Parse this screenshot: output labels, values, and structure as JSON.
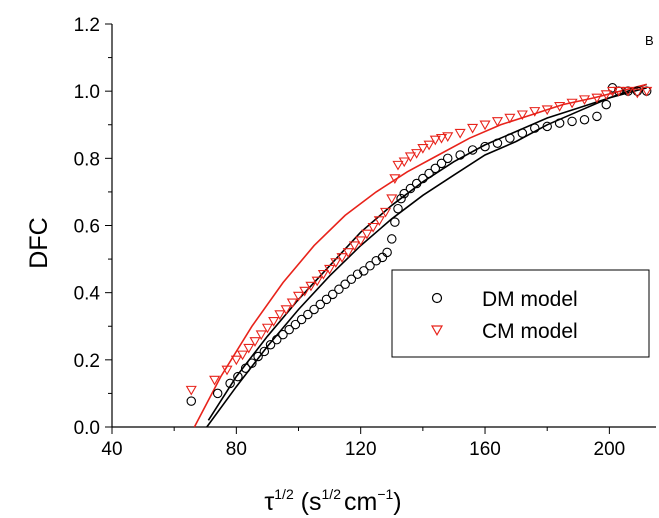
{
  "chart_data": {
    "type": "scatter",
    "panel_label": "B",
    "xlabel": {
      "base": "τ",
      "sup1": "1/2",
      "open": " (s",
      "sup2": "1/2",
      "unit": "cm",
      "sup3": "−1",
      "close": ")"
    },
    "ylabel": "DFC",
    "xlim": [
      40,
      215
    ],
    "ylim": [
      0,
      1.2
    ],
    "x_ticks": [
      "40",
      "80",
      "120",
      "160",
      "200"
    ],
    "y_ticks": [
      "0.0",
      "0.2",
      "0.4",
      "0.6",
      "0.8",
      "1.0",
      "1.2"
    ],
    "grid": false,
    "legend_position": "right-middle",
    "colors": {
      "dm": "#000000",
      "cm": "#e8231b"
    },
    "series": [
      {
        "name": "DM model",
        "marker": "circle",
        "color": "#000000",
        "points": [
          [
            65.5,
            0.077
          ],
          [
            74,
            0.1
          ],
          [
            78,
            0.13
          ],
          [
            80.5,
            0.15
          ],
          [
            83,
            0.175
          ],
          [
            85,
            0.19
          ],
          [
            87,
            0.21
          ],
          [
            89,
            0.225
          ],
          [
            91,
            0.245
          ],
          [
            93,
            0.26
          ],
          [
            95,
            0.275
          ],
          [
            97,
            0.29
          ],
          [
            99,
            0.305
          ],
          [
            101,
            0.32
          ],
          [
            103,
            0.335
          ],
          [
            105,
            0.35
          ],
          [
            107,
            0.365
          ],
          [
            109,
            0.38
          ],
          [
            111,
            0.395
          ],
          [
            113,
            0.41
          ],
          [
            115,
            0.425
          ],
          [
            117,
            0.44
          ],
          [
            119,
            0.455
          ],
          [
            121,
            0.465
          ],
          [
            123,
            0.48
          ],
          [
            125,
            0.495
          ],
          [
            127,
            0.505
          ],
          [
            128.5,
            0.52
          ],
          [
            130,
            0.56
          ],
          [
            131,
            0.61
          ],
          [
            132,
            0.65
          ],
          [
            133,
            0.68
          ],
          [
            134,
            0.695
          ],
          [
            136,
            0.71
          ],
          [
            138,
            0.725
          ],
          [
            140,
            0.74
          ],
          [
            142,
            0.755
          ],
          [
            144,
            0.77
          ],
          [
            146,
            0.785
          ],
          [
            148,
            0.8
          ],
          [
            152,
            0.81
          ],
          [
            156,
            0.825
          ],
          [
            160,
            0.835
          ],
          [
            164,
            0.845
          ],
          [
            168,
            0.86
          ],
          [
            172,
            0.875
          ],
          [
            176,
            0.89
          ],
          [
            180,
            0.895
          ],
          [
            184,
            0.905
          ],
          [
            188,
            0.91
          ],
          [
            192,
            0.915
          ],
          [
            196,
            0.925
          ],
          [
            199,
            0.96
          ],
          [
            201,
            1.01
          ],
          [
            203,
            1.0
          ],
          [
            206,
            1.0
          ],
          [
            209,
            1.0
          ],
          [
            212,
            1.0
          ]
        ]
      },
      {
        "name": "CM model",
        "marker": "triangle-down",
        "color": "#e8231b",
        "points": [
          [
            65.5,
            0.11
          ],
          [
            73,
            0.14
          ],
          [
            77,
            0.17
          ],
          [
            80,
            0.2
          ],
          [
            82,
            0.215
          ],
          [
            84,
            0.235
          ],
          [
            86,
            0.255
          ],
          [
            88,
            0.275
          ],
          [
            90,
            0.295
          ],
          [
            92,
            0.315
          ],
          [
            94,
            0.335
          ],
          [
            96,
            0.35
          ],
          [
            98,
            0.37
          ],
          [
            100,
            0.39
          ],
          [
            102,
            0.405
          ],
          [
            104,
            0.42
          ],
          [
            106,
            0.435
          ],
          [
            108,
            0.455
          ],
          [
            110,
            0.47
          ],
          [
            112,
            0.49
          ],
          [
            114,
            0.505
          ],
          [
            116,
            0.52
          ],
          [
            118,
            0.54
          ],
          [
            120,
            0.555
          ],
          [
            122,
            0.575
          ],
          [
            124,
            0.595
          ],
          [
            126,
            0.615
          ],
          [
            128,
            0.64
          ],
          [
            130,
            0.68
          ],
          [
            131,
            0.74
          ],
          [
            132,
            0.78
          ],
          [
            134,
            0.79
          ],
          [
            136,
            0.805
          ],
          [
            138,
            0.815
          ],
          [
            140,
            0.83
          ],
          [
            142,
            0.84
          ],
          [
            144,
            0.855
          ],
          [
            146,
            0.86
          ],
          [
            148,
            0.865
          ],
          [
            152,
            0.875
          ],
          [
            156,
            0.89
          ],
          [
            160,
            0.9
          ],
          [
            164,
            0.91
          ],
          [
            168,
            0.92
          ],
          [
            172,
            0.93
          ],
          [
            176,
            0.94
          ],
          [
            180,
            0.945
          ],
          [
            184,
            0.955
          ],
          [
            188,
            0.965
          ],
          [
            192,
            0.975
          ],
          [
            196,
            0.98
          ],
          [
            199,
            0.99
          ],
          [
            201,
            1.0
          ],
          [
            203,
            1.0
          ],
          [
            206,
            1.0
          ],
          [
            209,
            0.995
          ],
          [
            212,
            1.0
          ]
        ]
      }
    ],
    "fits": [
      {
        "series": "DM model",
        "color": "#000000",
        "points": [
          [
            70.5,
            0.0
          ],
          [
            80,
            0.12
          ],
          [
            90,
            0.24
          ],
          [
            100,
            0.35
          ],
          [
            110,
            0.45
          ],
          [
            120,
            0.54
          ],
          [
            130,
            0.62
          ],
          [
            140,
            0.69
          ],
          [
            150,
            0.75
          ],
          [
            160,
            0.81
          ],
          [
            170,
            0.85
          ],
          [
            180,
            0.9
          ],
          [
            190,
            0.94
          ],
          [
            200,
            0.98
          ],
          [
            212,
            1.02
          ]
        ]
      },
      {
        "series": "DM model",
        "color": "#000000",
        "points": [
          [
            71,
            0.02
          ],
          [
            80,
            0.15
          ],
          [
            90,
            0.27
          ],
          [
            100,
            0.38
          ],
          [
            110,
            0.48
          ],
          [
            120,
            0.58
          ],
          [
            130,
            0.66
          ],
          [
            140,
            0.73
          ],
          [
            150,
            0.79
          ],
          [
            160,
            0.84
          ],
          [
            170,
            0.88
          ],
          [
            180,
            0.92
          ],
          [
            190,
            0.95
          ],
          [
            200,
            0.98
          ],
          [
            212,
            1.01
          ]
        ]
      },
      {
        "series": "CM model",
        "color": "#e8231b",
        "points": [
          [
            66.5,
            0.0
          ],
          [
            75,
            0.15
          ],
          [
            85,
            0.3
          ],
          [
            95,
            0.43
          ],
          [
            105,
            0.54
          ],
          [
            115,
            0.63
          ],
          [
            125,
            0.7
          ],
          [
            135,
            0.76
          ],
          [
            145,
            0.81
          ],
          [
            155,
            0.86
          ],
          [
            165,
            0.9
          ],
          [
            175,
            0.93
          ],
          [
            185,
            0.96
          ],
          [
            195,
            0.98
          ],
          [
            212,
            1.02
          ]
        ]
      }
    ]
  }
}
